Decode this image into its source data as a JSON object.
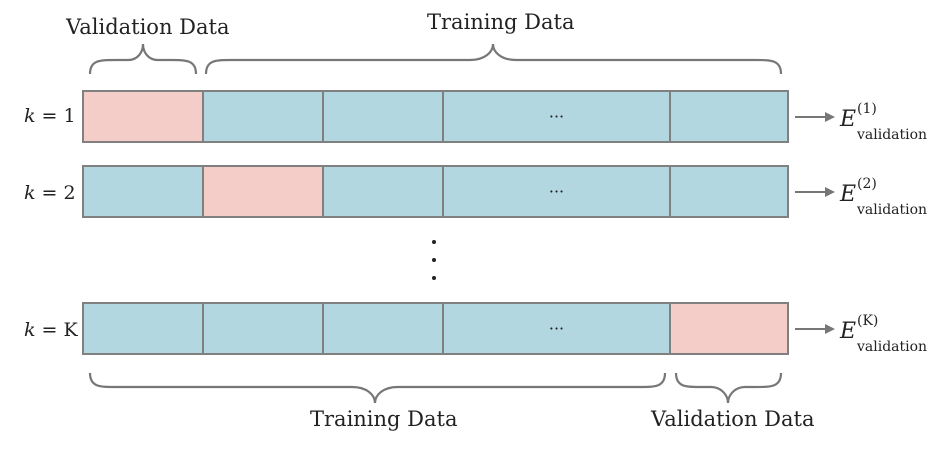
{
  "top_labels": {
    "validation": "Validation Data",
    "training": "Training Data"
  },
  "bottom_labels": {
    "training": "Training Data",
    "validation": "Validation Data"
  },
  "rows": [
    {
      "k_var": "k",
      "k_eq": " = ",
      "k_val": "1",
      "ellipsis": "···",
      "err_symbol": "E",
      "err_sup": "(1)",
      "err_sub": "validation",
      "val_index": 0
    },
    {
      "k_var": "k",
      "k_eq": " = ",
      "k_val": "2",
      "ellipsis": "···",
      "err_symbol": "E",
      "err_sup": "(2)",
      "err_sub": "validation",
      "val_index": 1
    },
    {
      "k_var": "k",
      "k_eq": " = ",
      "k_val": "K",
      "ellipsis": "···",
      "err_symbol": "E",
      "err_sup": "(K)",
      "err_sub": "validation",
      "val_index": 4
    }
  ],
  "colors": {
    "training_fold": "#b3d7e1",
    "validation_fold": "#f5cdc8",
    "border": "#808080",
    "brace": "#777777"
  }
}
